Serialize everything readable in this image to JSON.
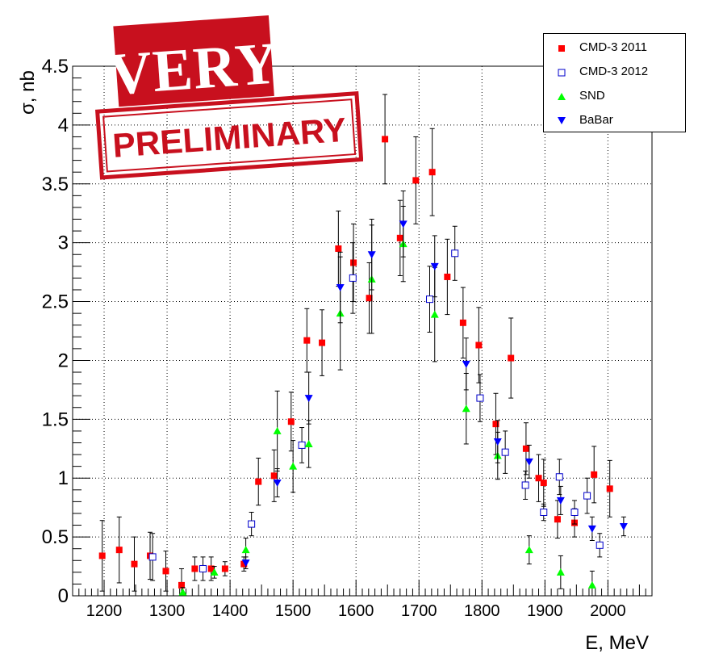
{
  "chart_data": {
    "type": "scatter",
    "xlabel": "E, MeV",
    "ylabel": "σ, nb",
    "xlim": [
      1150,
      2070
    ],
    "ylim": [
      0,
      4.5
    ],
    "xticks": [
      "1200",
      "1300",
      "1400",
      "1500",
      "1600",
      "1700",
      "1800",
      "1900",
      "2000"
    ],
    "xtick_values": [
      1200,
      1300,
      1400,
      1500,
      1600,
      1700,
      1800,
      1900,
      2000
    ],
    "yticks": [
      "0",
      "0.5",
      "1",
      "1.5",
      "2",
      "2.5",
      "3",
      "3.5",
      "4",
      "4.5"
    ],
    "ytick_values": [
      0,
      0.5,
      1,
      1.5,
      2,
      2.5,
      3,
      3.5,
      4,
      4.5
    ],
    "grid": true,
    "legend_position": "top-right",
    "series": [
      {
        "name": "CMD-3 2011",
        "marker": "filled-square",
        "color": "#ff0000",
        "points": [
          {
            "x": 1197,
            "y": 0.34,
            "err": 0.3
          },
          {
            "x": 1224,
            "y": 0.39,
            "err": 0.28
          },
          {
            "x": 1248,
            "y": 0.27,
            "err": 0.23
          },
          {
            "x": 1273,
            "y": 0.34,
            "err": 0.2
          },
          {
            "x": 1298,
            "y": 0.21,
            "err": 0.17
          },
          {
            "x": 1323,
            "y": 0.09,
            "err": 0.14
          },
          {
            "x": 1344,
            "y": 0.23,
            "err": 0.1
          },
          {
            "x": 1370,
            "y": 0.23,
            "err": 0.1
          },
          {
            "x": 1392,
            "y": 0.23,
            "err": 0.06
          },
          {
            "x": 1422,
            "y": 0.27,
            "err": 0.06
          },
          {
            "x": 1445,
            "y": 0.97,
            "err": 0.2
          },
          {
            "x": 1470,
            "y": 1.02,
            "err": 0.22
          },
          {
            "x": 1497,
            "y": 1.48,
            "err": 0.25
          },
          {
            "x": 1522,
            "y": 2.17,
            "err": 0.27
          },
          {
            "x": 1546,
            "y": 2.15,
            "err": 0.28
          },
          {
            "x": 1572,
            "y": 2.95,
            "err": 0.32
          },
          {
            "x": 1596,
            "y": 2.83,
            "err": 0.33
          },
          {
            "x": 1621,
            "y": 2.53,
            "err": 0.3
          },
          {
            "x": 1646,
            "y": 3.88,
            "err": 0.38
          },
          {
            "x": 1670,
            "y": 3.04,
            "err": 0.32
          },
          {
            "x": 1695,
            "y": 3.53,
            "err": 0.37
          },
          {
            "x": 1721,
            "y": 3.6,
            "err": 0.37
          },
          {
            "x": 1745,
            "y": 2.71,
            "err": 0.32
          },
          {
            "x": 1770,
            "y": 2.32,
            "err": 0.3
          },
          {
            "x": 1795,
            "y": 2.13,
            "err": 0.32
          },
          {
            "x": 1822,
            "y": 1.46,
            "err": 0.26
          },
          {
            "x": 1846,
            "y": 2.02,
            "err": 0.34
          },
          {
            "x": 1870,
            "y": 1.25,
            "err": 0.22
          },
          {
            "x": 1890,
            "y": 1.0,
            "err": 0.2
          },
          {
            "x": 1898,
            "y": 0.96,
            "err": 0.2
          },
          {
            "x": 1920,
            "y": 0.65,
            "err": 0.16
          },
          {
            "x": 1947,
            "y": 0.62,
            "err": 0.12
          },
          {
            "x": 1978,
            "y": 1.03,
            "err": 0.24
          },
          {
            "x": 2003,
            "y": 0.91,
            "err": 0.24
          }
        ]
      },
      {
        "name": "CMD-3 2012",
        "marker": "open-square",
        "color": "#0000cc",
        "points": [
          {
            "x": 1277,
            "y": 0.33,
            "err": 0.2
          },
          {
            "x": 1357,
            "y": 0.23,
            "err": 0.1
          },
          {
            "x": 1434,
            "y": 0.61,
            "err": 0.1
          },
          {
            "x": 1514,
            "y": 1.28,
            "err": 0.15
          },
          {
            "x": 1595,
            "y": 2.7,
            "err": 0.3
          },
          {
            "x": 1717,
            "y": 2.52,
            "err": 0.28
          },
          {
            "x": 1757,
            "y": 2.91,
            "err": 0.23
          },
          {
            "x": 1797,
            "y": 1.68,
            "err": 0.2
          },
          {
            "x": 1837,
            "y": 1.22,
            "err": 0.18
          },
          {
            "x": 1869,
            "y": 0.94,
            "err": 0.12
          },
          {
            "x": 1898,
            "y": 0.71,
            "err": 0.07
          },
          {
            "x": 1923,
            "y": 1.01,
            "err": 0.15
          },
          {
            "x": 1947,
            "y": 0.71,
            "err": 0.1
          },
          {
            "x": 1967,
            "y": 0.85,
            "err": 0.15
          },
          {
            "x": 1987,
            "y": 0.43,
            "err": 0.1
          }
        ]
      },
      {
        "name": "SND",
        "marker": "triangle-up",
        "color": "#00ff00",
        "points": [
          {
            "x": 1325,
            "y": 0.03,
            "err": 0.04
          },
          {
            "x": 1375,
            "y": 0.2,
            "err": 0.05
          },
          {
            "x": 1425,
            "y": 0.39,
            "err": 0.1
          },
          {
            "x": 1475,
            "y": 1.4,
            "err": 0.34
          },
          {
            "x": 1500,
            "y": 1.1,
            "err": 0.22
          },
          {
            "x": 1525,
            "y": 1.29,
            "err": 0.2
          },
          {
            "x": 1575,
            "y": 2.4,
            "err": 0.48
          },
          {
            "x": 1625,
            "y": 2.69,
            "err": 0.46
          },
          {
            "x": 1675,
            "y": 2.99,
            "err": 0.32
          },
          {
            "x": 1725,
            "y": 2.39,
            "err": 0.4
          },
          {
            "x": 1775,
            "y": 1.59,
            "err": 0.3
          },
          {
            "x": 1825,
            "y": 1.19,
            "err": 0.2
          },
          {
            "x": 1875,
            "y": 0.39,
            "err": 0.12
          },
          {
            "x": 1925,
            "y": 0.2,
            "err": 0.14
          },
          {
            "x": 1975,
            "y": 0.09,
            "err": 0.12
          }
        ]
      },
      {
        "name": "BaBar",
        "marker": "triangle-down",
        "color": "#0000ff",
        "points": [
          {
            "x": 1425,
            "y": 0.28,
            "err": 0.05
          },
          {
            "x": 1475,
            "y": 0.96,
            "err": 0.12
          },
          {
            "x": 1525,
            "y": 1.68,
            "err": 0.22
          },
          {
            "x": 1575,
            "y": 2.62,
            "err": 0.3
          },
          {
            "x": 1625,
            "y": 2.9,
            "err": 0.3
          },
          {
            "x": 1675,
            "y": 3.16,
            "err": 0.28
          },
          {
            "x": 1725,
            "y": 2.8,
            "err": 0.26
          },
          {
            "x": 1775,
            "y": 1.97,
            "err": 0.22
          },
          {
            "x": 1825,
            "y": 1.31,
            "err": 0.18
          },
          {
            "x": 1875,
            "y": 1.14,
            "err": 0.14
          },
          {
            "x": 1925,
            "y": 0.81,
            "err": 0.12
          },
          {
            "x": 1975,
            "y": 0.57,
            "err": 0.1
          },
          {
            "x": 2025,
            "y": 0.59,
            "err": 0.08
          }
        ]
      }
    ]
  },
  "stamp": {
    "line1": "VERY",
    "line2": "PRELIMINARY",
    "color": "#c8101e"
  }
}
